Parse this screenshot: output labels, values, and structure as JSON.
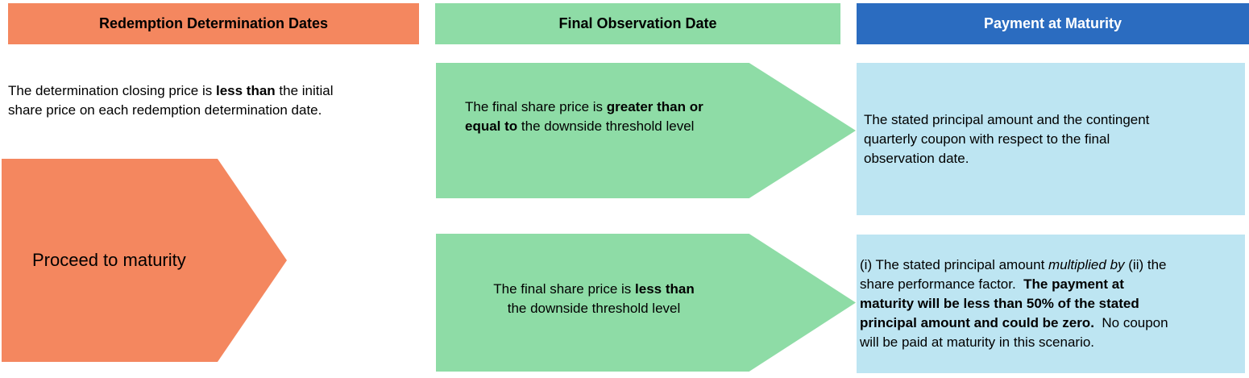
{
  "colors": {
    "orange": "#F4875F",
    "green": "#8EDCA6",
    "blue": "#2B6CC0",
    "light_blue": "#BDE5F2",
    "text": "#000000",
    "header_text_light": "#FFFFFF"
  },
  "columns": {
    "redemption": {
      "header": "Redemption Determination Dates",
      "condition": [
        {
          "t": "The determination closing price is "
        },
        {
          "t": "less than",
          "b": 1
        },
        {
          "t": " the initial\nshare price on each redemption determination date."
        }
      ],
      "arrow_label": "Proceed to maturity"
    },
    "final_observation": {
      "header": "Final Observation Date",
      "scenario_top": [
        {
          "t": "The final share price is "
        },
        {
          "t": "greater than or\nequal to",
          "b": 1
        },
        {
          "t": " the downside threshold level"
        }
      ],
      "scenario_bottom": [
        {
          "t": "The final share price is "
        },
        {
          "t": "less than",
          "b": 1
        },
        {
          "t": "\nthe downside threshold level"
        }
      ]
    },
    "payment": {
      "header": "Payment at Maturity",
      "outcome_top": [
        {
          "t": "The stated principal amount and the contingent\nquarterly coupon with respect to the final\nobservation date."
        }
      ],
      "outcome_bottom": [
        {
          "t": "(i) The stated principal amount "
        },
        {
          "t": "multiplied by",
          "i": 1
        },
        {
          "t": " (ii) the\nshare performance factor.  "
        },
        {
          "t": "The payment at\nmaturity will be less than 50% of the stated\nprincipal amount and could be zero.",
          "b": 1
        },
        {
          "t": "  No coupon\nwill be paid at maturity in this scenario."
        }
      ]
    }
  }
}
